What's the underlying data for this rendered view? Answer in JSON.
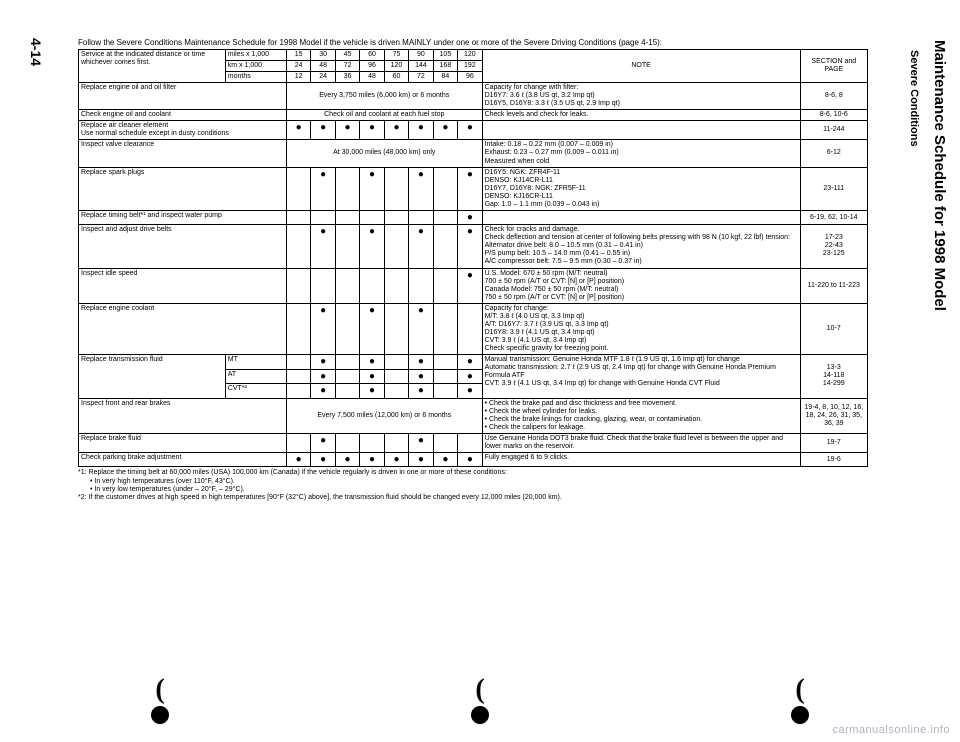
{
  "page_number": "4-14",
  "side_title": "Maintenance Schedule for 1998 Model",
  "side_sub": "Severe Conditions",
  "intro": "Follow the Severe Conditions Maintenance Schedule for 1998 Model if the vehicle is driven MAINLY under one or more of the Severe Driving Conditions (page 4-15):",
  "header": {
    "service_label": "Service at the indicated distance or time whichever comes first.",
    "units": [
      "miles x 1,000",
      "km x 1,000",
      "months"
    ],
    "miles": [
      "15",
      "30",
      "45",
      "60",
      "75",
      "90",
      "105",
      "120"
    ],
    "km": [
      "24",
      "48",
      "72",
      "96",
      "120",
      "144",
      "168",
      "192"
    ],
    "months": [
      "12",
      "24",
      "36",
      "48",
      "60",
      "72",
      "84",
      "96"
    ],
    "note_label": "NOTE",
    "page_label": "SECTION and PAGE"
  },
  "rows": [
    {
      "svc": "Replace engine oil and oil filter",
      "span": "Every 3,750 miles (6,000 km) or 6 months",
      "note": "Capacity for change with filter:\nD16Y7: 3.6 ℓ (3.8 US qt, 3.2 Imp qt)\nD16Y5, D16Y8: 3.3 ℓ (3.5 US qt, 2.9 Imp qt)",
      "page": "8-6, 8"
    },
    {
      "svc": "Check engine oil and coolant",
      "span": "Check oil and coolant at each fuel stop",
      "note": "Check levels and check for leaks.",
      "page": "8-6, 10-6"
    },
    {
      "svc": "Replace air cleaner element\nUse normal schedule except in dusty conditions",
      "dots": [
        1,
        1,
        1,
        1,
        1,
        1,
        1,
        1
      ],
      "note": "",
      "page": "11-244"
    },
    {
      "svc": "Inspect valve clearance",
      "span": "At 30,000 miles (48,000 km) only",
      "note": "Intake: 0.18 – 0.22 mm (0.007 – 0.009 in)\nExhaust: 0.23 – 0.27 mm (0.009 – 0.011 in)\nMeasured when cold",
      "page": "6-12"
    },
    {
      "svc": "Replace spark plugs",
      "dots": [
        0,
        1,
        0,
        1,
        0,
        1,
        0,
        1
      ],
      "note": "D16Y5:           NGK: ZFR4F-11\n                       DENSO: KJ14CR-L11\nD16Y7, D16Y8: NGK: ZFR5F-11\n                       DENSO: KJ16CR-L11\nGap: 1.0 – 1.1 mm (0.039 – 0.043 in)",
      "page": "23-111"
    },
    {
      "svc": "Replace timing belt*¹ and inspect water pump",
      "dots": [
        0,
        0,
        0,
        0,
        0,
        0,
        0,
        1
      ],
      "note": "",
      "page": "6-19, 62, 10-14"
    },
    {
      "svc": "Inspect and adjust drive belts",
      "dots": [
        0,
        1,
        0,
        1,
        0,
        1,
        0,
        1
      ],
      "note": "Check for cracks and damage.\nCheck deflection and tension at center of following belts pressing with 98 N (10 kgf, 22 lbf) tension:\n  Alternator drive belt: 8.0 – 10.5 mm (0.31 – 0.41 in)\n  P/S pump belt: 10.5 – 14.0 mm (0.41 – 0.55 in)\n  A/C compressor belt: 7.5 – 9.5 mm (0.30 – 0.37 in)",
      "page": "17-23\n22-43\n23-125"
    },
    {
      "svc": "Inspect idle speed",
      "dots": [
        0,
        0,
        0,
        0,
        0,
        0,
        0,
        1
      ],
      "note": "U.S. Model:    670 ± 50 rpm (M/T: neutral)\n                     700 ± 50 rpm (A/T or CVT: [N] or [P] position)\nCanada Model: 750 ± 50 rpm (M/T: neutral)\n                     750 ± 50 rpm (A/T or CVT: [N] or [P] position)",
      "page": "11-220 to 11-223"
    },
    {
      "svc": "Replace engine coolant",
      "dots": [
        0,
        1,
        0,
        1,
        0,
        1,
        0,
        0
      ],
      "note": "Capacity for change:\n  M/T: 3.8 ℓ (4.0 US qt, 3.3 Imp qt)\n  A/T: D16Y7: 3.7 ℓ (3.9 US qt, 3.3 Imp qt)\n         D16Y8: 3.9 ℓ (4.1 US qt, 3.4 Imp qt)\n  CVT: 3.9 ℓ (4.1 US qt, 3.4 Imp qt)\nCheck specific gravity for freezing point.",
      "page": "10-7"
    },
    {
      "svc": "Replace transmission fluid",
      "subrows": [
        {
          "label": "MT",
          "dots": [
            0,
            1,
            0,
            1,
            0,
            1,
            0,
            1
          ]
        },
        {
          "label": "AT",
          "dots": [
            0,
            1,
            0,
            1,
            0,
            1,
            0,
            1
          ]
        },
        {
          "label": "CVT*²",
          "dots": [
            0,
            1,
            0,
            1,
            0,
            1,
            0,
            1
          ]
        }
      ],
      "note": "Manual transmission: Genuine Honda MTF 1.8 ℓ (1.9 US qt, 1.6 Imp qt) for change\nAutomatic transmission: 2.7 ℓ (2.9 US qt, 2.4 Imp qt) for change with Genuine Honda Premium Formula ATF\nCVT: 3.9 ℓ (4.1 US qt, 3.4 Imp qt) for change with Genuine Honda CVT Fluid",
      "page": "13-3\n14-118\n14-299"
    },
    {
      "svc": "Inspect front and rear brakes",
      "span": "Every 7,500 miles (12,000 km) or 6 months",
      "note": "• Check the brake pad and disc thickness and free movement.\n• Check the wheel cylinder for leaks.\n• Check the brake linings for cracking, glazing, wear, or contamination.\n• Check the calipers for leakage.",
      "page": "19-4, 8, 10, 12, 16, 18, 24, 26, 31, 35, 36, 39"
    },
    {
      "svc": "Replace brake fluid",
      "dots": [
        0,
        1,
        0,
        0,
        0,
        1,
        0,
        0
      ],
      "note": "Use Genuine Honda DOT3 brake fluid. Check that the brake fluid level is between the upper and lower marks on the reservoir.",
      "page": "19-7"
    },
    {
      "svc": "Check parking brake adjustment",
      "dots": [
        1,
        1,
        1,
        1,
        1,
        1,
        1,
        1
      ],
      "note": "Fully engaged 6 to 9 clicks.",
      "page": "19-6"
    }
  ],
  "footnotes": {
    "f1": "*1: Replace the timing belt at 60,000 miles (USA) 100,000 km (Canada) if the vehicle regularly is driven in one or more of these conditions:",
    "f1a": "• In very high temperatures (over 110°F, 43°C).",
    "f1b": "• In very low temperatures (under – 20°F, – 29°C).",
    "f2": "*2: If the customer drives at high speed in high temperatures [90°F (32°C) above], the transmission fluid should be changed every 12,000 miles (20,000 km)."
  },
  "watermark": "carmanualsonline.info"
}
